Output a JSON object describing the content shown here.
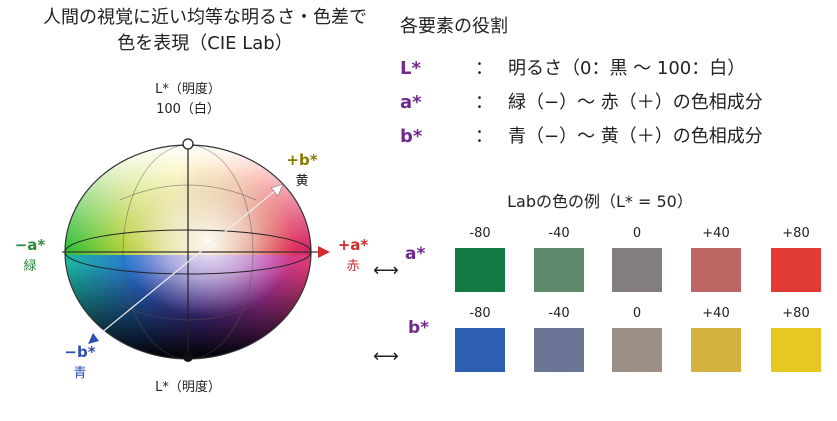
{
  "title_line1": "人間の視覚に近い均等な明るさ・色差で",
  "title_line2": "色を表現（CIE Lab）",
  "sphere": {
    "top_label": "L*（明度）",
    "top_value": "100（白）",
    "bottom_label": "L*（明度）",
    "pos_b_symbol": "+b*",
    "pos_b_name": "黄",
    "neg_a_symbol": "−a*",
    "neg_a_name": "緑",
    "pos_a_symbol": "+a*",
    "pos_a_name": "赤",
    "neg_b_symbol": "−b*",
    "neg_b_name": "青",
    "colors": {
      "pos_a": "#d32b2b",
      "neg_a": "#2b8a3e",
      "pos_b": "#8a7a00",
      "neg_b": "#2b4fb0"
    }
  },
  "roles": {
    "heading": "各要素の役割",
    "items": [
      {
        "symbol": "L*",
        "colon": "：",
        "desc": "明るさ（0：黒 〜 100：白）"
      },
      {
        "symbol": "a*",
        "colon": "：",
        "desc": "緑（−）〜 赤（＋）の色相成分"
      },
      {
        "symbol": "b*",
        "colon": "：",
        "desc": "青（−）〜 黄（＋）の色相成分"
      }
    ]
  },
  "examples": {
    "title": "Labの色の例（L* = 50）",
    "a_row": {
      "symbol": "a*",
      "arrow": "⟷",
      "labels": [
        "-80",
        "-40",
        "0",
        "+40",
        "+80"
      ],
      "colors": [
        "#147a44",
        "#5e8a6c",
        "#837e7d",
        "#bb6663",
        "#e13a37"
      ]
    },
    "b_row": {
      "symbol": "b*",
      "arrow": "⟷",
      "labels": [
        "-80",
        "-40",
        "0",
        "+40",
        "+80"
      ],
      "colors": [
        "#2f5fb0",
        "#6a7494",
        "#9d8f86",
        "#d3b23f",
        "#e6c724"
      ]
    }
  }
}
